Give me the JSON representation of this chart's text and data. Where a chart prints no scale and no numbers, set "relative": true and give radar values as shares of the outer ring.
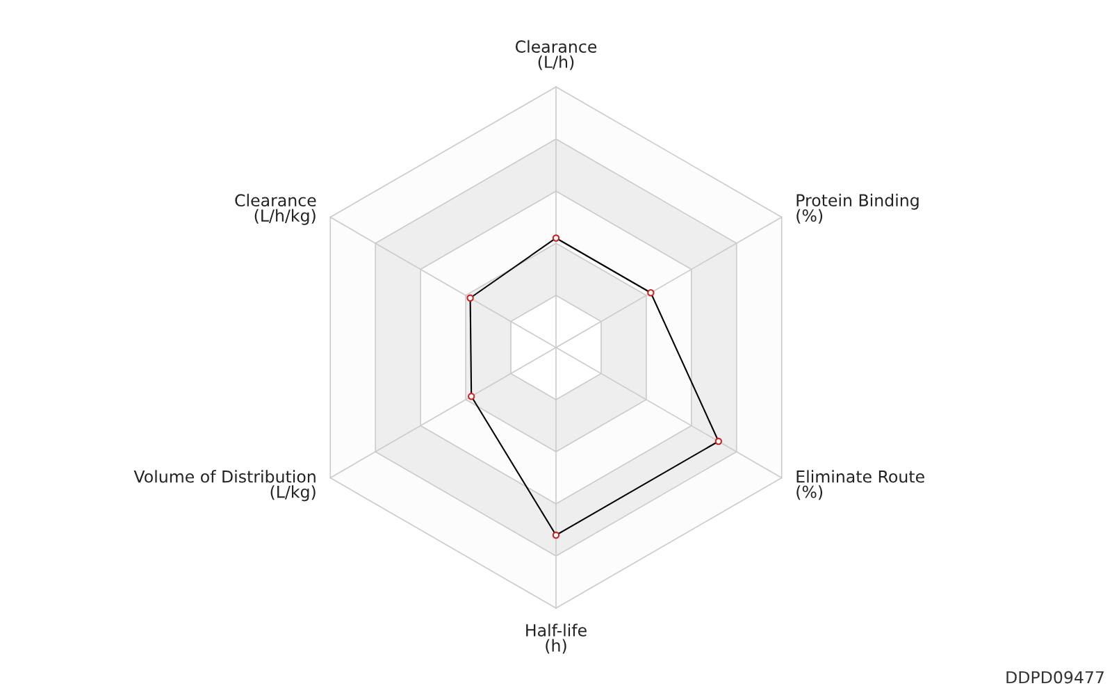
{
  "chart_data": {
    "type": "radar",
    "relative": true,
    "categories": [
      "Clearance\n(L/h)",
      "Protein Binding\n(%)",
      "Eliminate Route\n(%)",
      "Half-life\n(h)",
      "Volume of Distribution\n(L/kg)",
      "Clearance\n(L/h/kg)"
    ],
    "series": [
      {
        "color": "#000000",
        "values": [
          0.42,
          0.42,
          0.72,
          0.72,
          0.375,
          0.38
        ]
      }
    ],
    "marker": "circle",
    "grid": true,
    "annotations": [
      "DDPD09477"
    ]
  }
}
